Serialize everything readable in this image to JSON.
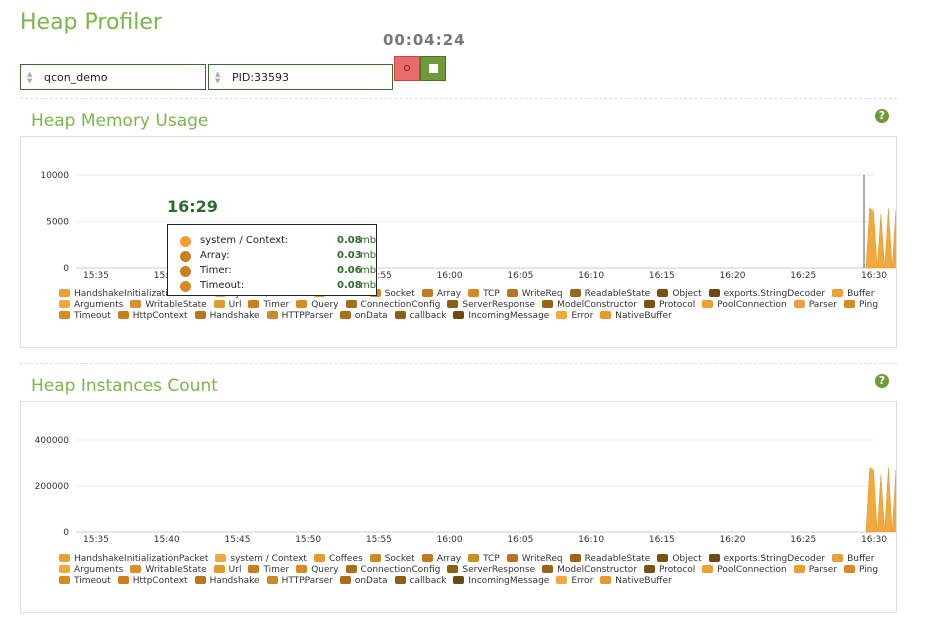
{
  "header": {
    "title": "Heap Profiler",
    "timer": "00:04:24"
  },
  "controls": {
    "app_select": "qcon_demo",
    "pid_select": "PID:33593",
    "record_icon": "record-icon",
    "stop_icon": "stop-icon"
  },
  "colors": {
    "accent": "#7ab648",
    "dark_green": "#3d6b2f",
    "area": "#f2a93b",
    "record": "#e96b6b"
  },
  "tooltip": {
    "time": "16:29",
    "rows": [
      {
        "name": "system / Context:",
        "value": "0.08",
        "unit": "mb",
        "color": "#f0a030"
      },
      {
        "name": "Array:",
        "value": "0.03",
        "unit": "mb",
        "color": "#c97f1d"
      },
      {
        "name": "Timer:",
        "value": "0.06",
        "unit": "mb",
        "color": "#c97f1d"
      },
      {
        "name": "Timeout:",
        "value": "0.08",
        "unit": "mb",
        "color": "#d98a22"
      }
    ]
  },
  "chart_data": [
    {
      "type": "area",
      "title": "Heap Memory Usage",
      "x": [
        "15:35",
        "15:40",
        "15:45",
        "15:50",
        "15:55",
        "16:00",
        "16:05",
        "16:10",
        "16:15",
        "16:20",
        "16:25",
        "16:30"
      ],
      "y_ticks": [
        "0",
        "5000",
        "10000"
      ],
      "ylim": [
        0,
        10000
      ],
      "hover_time": "16:29",
      "burst": [
        0,
        6500,
        6100,
        0,
        5800,
        0,
        6400,
        0,
        6200,
        0,
        5500,
        0,
        6000,
        0,
        6500,
        0
      ],
      "legend": [
        {
          "name": "HandshakeInitializationPacket",
          "color": "#e9a037"
        },
        {
          "name": "system / Context",
          "color": "#f2a93b"
        },
        {
          "name": "Coffees",
          "color": "#e39b2c"
        },
        {
          "name": "Socket",
          "color": "#c98a2a"
        },
        {
          "name": "Array",
          "color": "#c27a1f"
        },
        {
          "name": "TCP",
          "color": "#d18b27"
        },
        {
          "name": "WriteReq",
          "color": "#b9761f"
        },
        {
          "name": "ReadableState",
          "color": "#99661a"
        },
        {
          "name": "Object",
          "color": "#7a5312"
        },
        {
          "name": "exports.StringDecoder",
          "color": "#6d4a10"
        },
        {
          "name": "Buffer",
          "color": "#e9a037"
        },
        {
          "name": "Arguments",
          "color": "#f2a93b"
        },
        {
          "name": "WritableState",
          "color": "#d99030"
        },
        {
          "name": "Url",
          "color": "#e39b2c"
        },
        {
          "name": "Timer",
          "color": "#c97f1d"
        },
        {
          "name": "Query",
          "color": "#d98a22"
        },
        {
          "name": "ConnectionConfig",
          "color": "#a86e18"
        },
        {
          "name": "ServerResponse",
          "color": "#8d5f15"
        },
        {
          "name": "ModelConstructor",
          "color": "#9a6417"
        },
        {
          "name": "Protocol",
          "color": "#7a5312"
        },
        {
          "name": "PoolConnection",
          "color": "#f0a030"
        },
        {
          "name": "Parser",
          "color": "#e9a037"
        },
        {
          "name": "Ping",
          "color": "#d98a22"
        },
        {
          "name": "Timeout",
          "color": "#d98a22"
        },
        {
          "name": "HttpContext",
          "color": "#c97f1d"
        },
        {
          "name": "Handshake",
          "color": "#b9761f"
        },
        {
          "name": "HTTPParser",
          "color": "#c98a2a"
        },
        {
          "name": "onData",
          "color": "#a86e18"
        },
        {
          "name": "callback",
          "color": "#8d5f15"
        },
        {
          "name": "IncomingMessage",
          "color": "#6d4a10"
        },
        {
          "name": "Error",
          "color": "#f2a93b"
        },
        {
          "name": "NativeBuffer",
          "color": "#e39b2c"
        }
      ]
    },
    {
      "type": "area",
      "title": "Heap Instances Count",
      "x": [
        "15:35",
        "15:40",
        "15:45",
        "15:50",
        "15:55",
        "16:00",
        "16:05",
        "16:10",
        "16:15",
        "16:20",
        "16:25",
        "16:30"
      ],
      "y_ticks": [
        "0",
        "200000",
        "400000"
      ],
      "ylim": [
        0,
        400000
      ],
      "burst": [
        0,
        280000,
        270000,
        0,
        250000,
        0,
        280000,
        0,
        270000,
        0,
        240000,
        0,
        260000,
        0,
        290000,
        0
      ],
      "legend": [
        {
          "name": "HandshakeInitializationPacket",
          "color": "#e9a037"
        },
        {
          "name": "system / Context",
          "color": "#f2a93b"
        },
        {
          "name": "Coffees",
          "color": "#e39b2c"
        },
        {
          "name": "Socket",
          "color": "#c98a2a"
        },
        {
          "name": "Array",
          "color": "#c27a1f"
        },
        {
          "name": "TCP",
          "color": "#d18b27"
        },
        {
          "name": "WriteReq",
          "color": "#b9761f"
        },
        {
          "name": "ReadableState",
          "color": "#99661a"
        },
        {
          "name": "Object",
          "color": "#7a5312"
        },
        {
          "name": "exports.StringDecoder",
          "color": "#6d4a10"
        },
        {
          "name": "Buffer",
          "color": "#e9a037"
        },
        {
          "name": "Arguments",
          "color": "#f2a93b"
        },
        {
          "name": "WritableState",
          "color": "#d99030"
        },
        {
          "name": "Url",
          "color": "#e39b2c"
        },
        {
          "name": "Timer",
          "color": "#c97f1d"
        },
        {
          "name": "Query",
          "color": "#d98a22"
        },
        {
          "name": "ConnectionConfig",
          "color": "#a86e18"
        },
        {
          "name": "ServerResponse",
          "color": "#8d5f15"
        },
        {
          "name": "ModelConstructor",
          "color": "#9a6417"
        },
        {
          "name": "Protocol",
          "color": "#7a5312"
        },
        {
          "name": "PoolConnection",
          "color": "#f0a030"
        },
        {
          "name": "Parser",
          "color": "#e9a037"
        },
        {
          "name": "Ping",
          "color": "#d98a22"
        },
        {
          "name": "Timeout",
          "color": "#d98a22"
        },
        {
          "name": "HttpContext",
          "color": "#c97f1d"
        },
        {
          "name": "Handshake",
          "color": "#b9761f"
        },
        {
          "name": "HTTPParser",
          "color": "#c98a2a"
        },
        {
          "name": "onData",
          "color": "#a86e18"
        },
        {
          "name": "callback",
          "color": "#8d5f15"
        },
        {
          "name": "IncomingMessage",
          "color": "#6d4a10"
        },
        {
          "name": "Error",
          "color": "#f2a93b"
        },
        {
          "name": "NativeBuffer",
          "color": "#e39b2c"
        }
      ]
    }
  ]
}
